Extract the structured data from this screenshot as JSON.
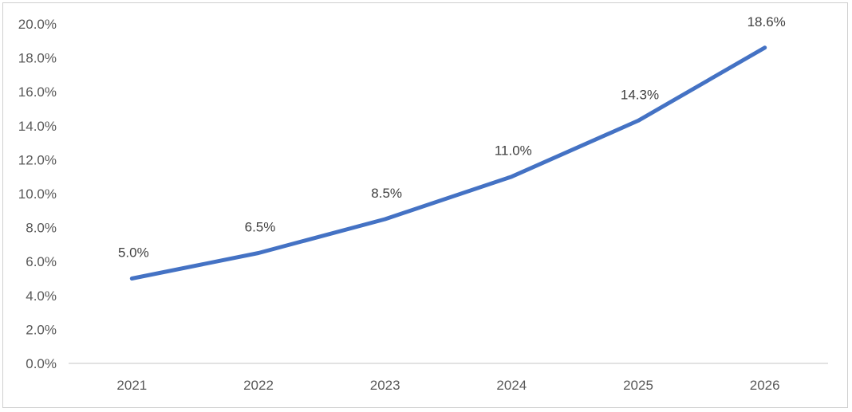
{
  "chart_data": {
    "type": "line",
    "title": "",
    "xlabel": "",
    "ylabel": "",
    "categories": [
      "2021",
      "2022",
      "2023",
      "2024",
      "2025",
      "2026"
    ],
    "series": [
      {
        "values": [
          5.0,
          6.5,
          8.5,
          11.0,
          14.3,
          18.6
        ],
        "data_labels": [
          "5.0%",
          "6.5%",
          "8.5%",
          "11.0%",
          "14.3%",
          "18.6%"
        ],
        "color": "#4472c4"
      }
    ],
    "ylim": [
      0,
      20
    ],
    "y_ticks": [
      0,
      2,
      4,
      6,
      8,
      10,
      12,
      14,
      16,
      18,
      20
    ],
    "y_tick_labels": [
      "0.0%",
      "2.0%",
      "4.0%",
      "6.0%",
      "8.0%",
      "10.0%",
      "12.0%",
      "14.0%",
      "16.0%",
      "18.0%",
      "20.0%"
    ],
    "grid": false,
    "legend": "none",
    "axis_color": "#d9d9d9"
  }
}
